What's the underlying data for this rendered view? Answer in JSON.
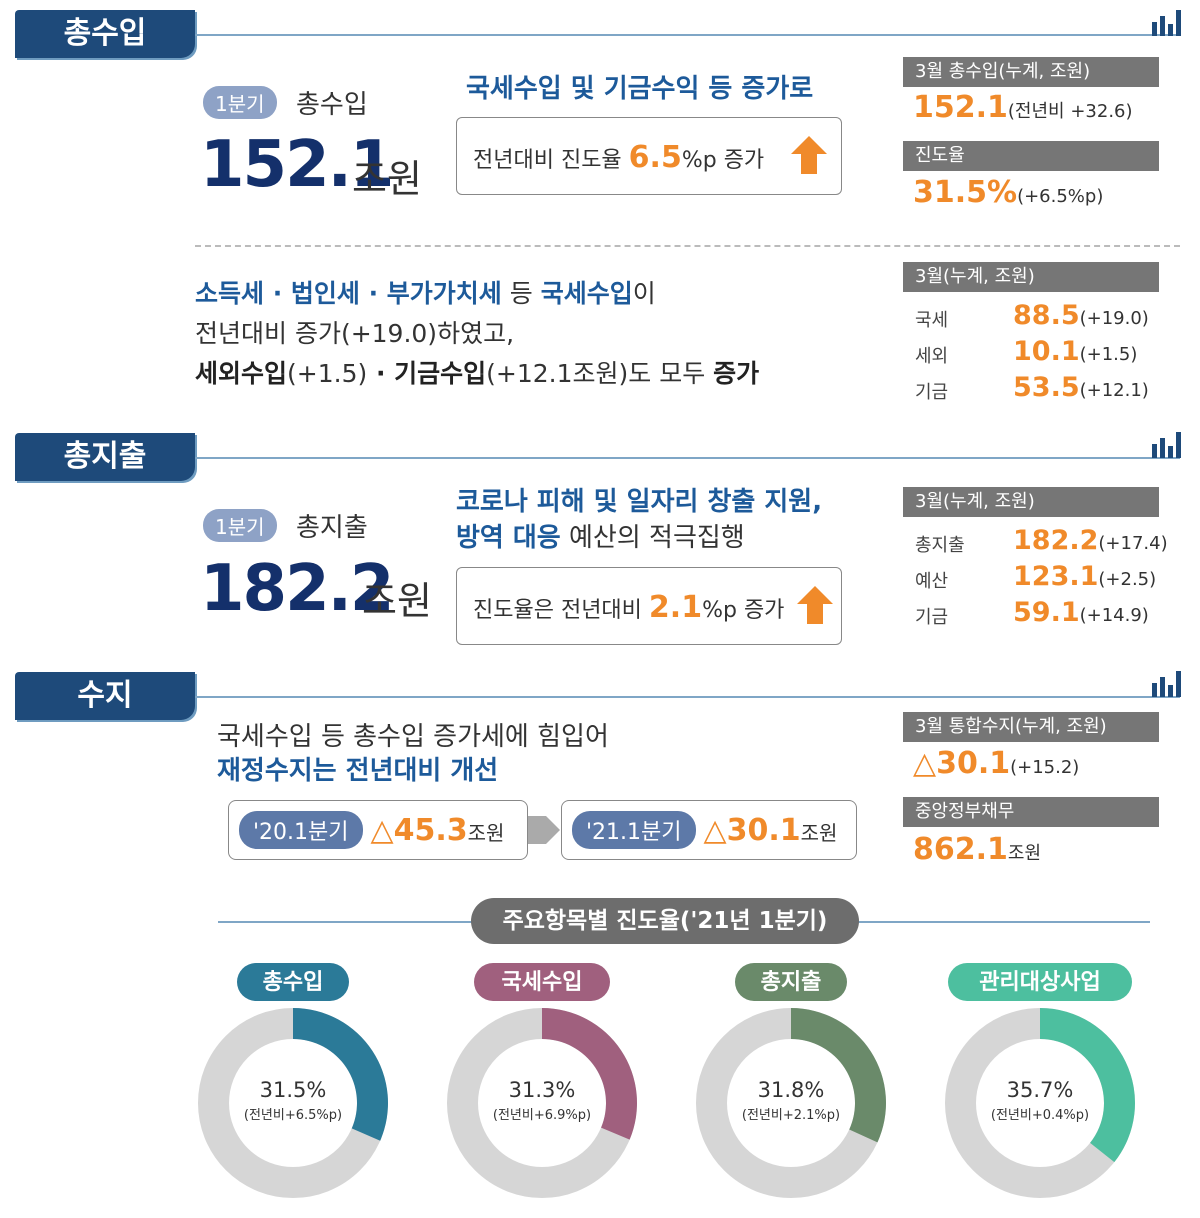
{
  "revenue": {
    "title": "총수입",
    "badge": "1분기",
    "label": "총수입",
    "amount": "152.1",
    "unit": "조원",
    "headline": "국세수입 및 기금수익 등 증가로",
    "box": [
      "전년대비 진도율 ",
      "6.5",
      "%p 증가"
    ],
    "side": [
      {
        "header": "3월 총수입(누계, 조원)",
        "value": "152.1",
        "note": "(전년비 +32.6)"
      },
      {
        "header": "진도율",
        "value": "31.5%",
        "note": "(+6.5%p)"
      }
    ],
    "desc": [
      [
        "소득세 · 법인세 · 부가가치세",
        " 등 ",
        "국세수입",
        "이"
      ],
      [
        "전년대비 증가(+19.0)하였고,"
      ],
      [
        "세외수입",
        "(+1.5)",
        " · ",
        "기금수입",
        "(+12.1조원)도 모두 ",
        "증가"
      ]
    ],
    "breakdown": {
      "header": "3월(누계, 조원)",
      "rows": [
        [
          "국세",
          "88.5",
          "(+19.0)"
        ],
        [
          "세외",
          "10.1",
          "(+1.5)"
        ],
        [
          "기금",
          "53.5",
          "(+12.1)"
        ]
      ]
    }
  },
  "expenditure": {
    "title": "총지출",
    "badge": "1분기",
    "label": "총지출",
    "amount": "182.2",
    "unit": "조원",
    "headline": [
      [
        "코로나 피해 및 일자리 창출 지원,"
      ],
      [
        "방역 대응",
        " 예산의 적극집행"
      ]
    ],
    "box": [
      "진도율은 전년대비 ",
      "2.1",
      "%p 증가"
    ],
    "breakdown": {
      "header": "3월(누계, 조원)",
      "rows": [
        [
          "총지출",
          "182.2",
          "(+17.4)"
        ],
        [
          "예산",
          "123.1",
          "(+2.5)"
        ],
        [
          "기금",
          "59.1",
          "(+14.9)"
        ]
      ]
    }
  },
  "balance": {
    "title": "수지",
    "text": [
      "국세수입 등 총수입 증가세에 힘입어",
      "재정수지는 전년대비 개선"
    ],
    "compare": [
      {
        "period": "'20.1분기",
        "value": "△45.3",
        "unit": "조원"
      },
      {
        "period": "'21.1분기",
        "value": "△30.1",
        "unit": "조원"
      }
    ],
    "side": [
      {
        "header": "3월 통합수지(누계, 조원)",
        "value": "△30.1",
        "note": "(+15.2)"
      },
      {
        "header": "중앙정부채무",
        "value": "862.1",
        "note": "조원"
      }
    ]
  },
  "progress": {
    "title": "주요항목별 진도율('21년 1분기)",
    "items": [
      {
        "name": "총수입",
        "value": 31.5,
        "value_label": "31.5%",
        "note": "(전년비+6.5%p)",
        "color": "#2b7a98"
      },
      {
        "name": "국세수입",
        "value": 31.3,
        "value_label": "31.3%",
        "note": "(전년비+6.9%p)",
        "color": "#a0607e"
      },
      {
        "name": "총지출",
        "value": 31.8,
        "value_label": "31.8%",
        "note": "(전년비+2.1%p)",
        "color": "#6a8a6a"
      },
      {
        "name": "관리대상사업",
        "value": 35.7,
        "value_label": "35.7%",
        "note": "(전년비+0.4%p)",
        "color": "#4dbf9f"
      }
    ]
  }
}
